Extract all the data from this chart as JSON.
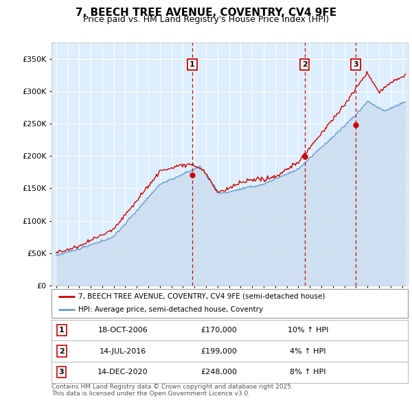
{
  "title": "7, BEECH TREE AVENUE, COVENTRY, CV4 9FE",
  "subtitle": "Price paid vs. HM Land Registry's House Price Index (HPI)",
  "title_fontsize": 11,
  "subtitle_fontsize": 9,
  "background_color": "#ffffff",
  "plot_bg_color": "#ddeeff",
  "grid_color": "#ffffff",
  "ylim": [
    0,
    375000
  ],
  "yticks": [
    0,
    50000,
    100000,
    150000,
    200000,
    250000,
    300000,
    350000
  ],
  "xmin": 1994.6,
  "xmax": 2025.5,
  "sale_dates": [
    2006.8,
    2016.54,
    2020.96
  ],
  "sale_labels": [
    "1",
    "2",
    "3"
  ],
  "sale_prices": [
    170000,
    199000,
    248000
  ],
  "sale_date_strs": [
    "18-OCT-2006",
    "14-JUL-2016",
    "14-DEC-2020"
  ],
  "sale_pct": [
    "10%",
    "4%",
    "8%"
  ],
  "legend_label_red": "7, BEECH TREE AVENUE, COVENTRY, CV4 9FE (semi-detached house)",
  "legend_label_blue": "HPI: Average price, semi-detached house, Coventry",
  "footnote": "Contains HM Land Registry data © Crown copyright and database right 2025.\nThis data is licensed under the Open Government Licence v3.0.",
  "red_color": "#cc0000",
  "blue_color": "#6699cc",
  "blue_fill": "#ccddf0"
}
